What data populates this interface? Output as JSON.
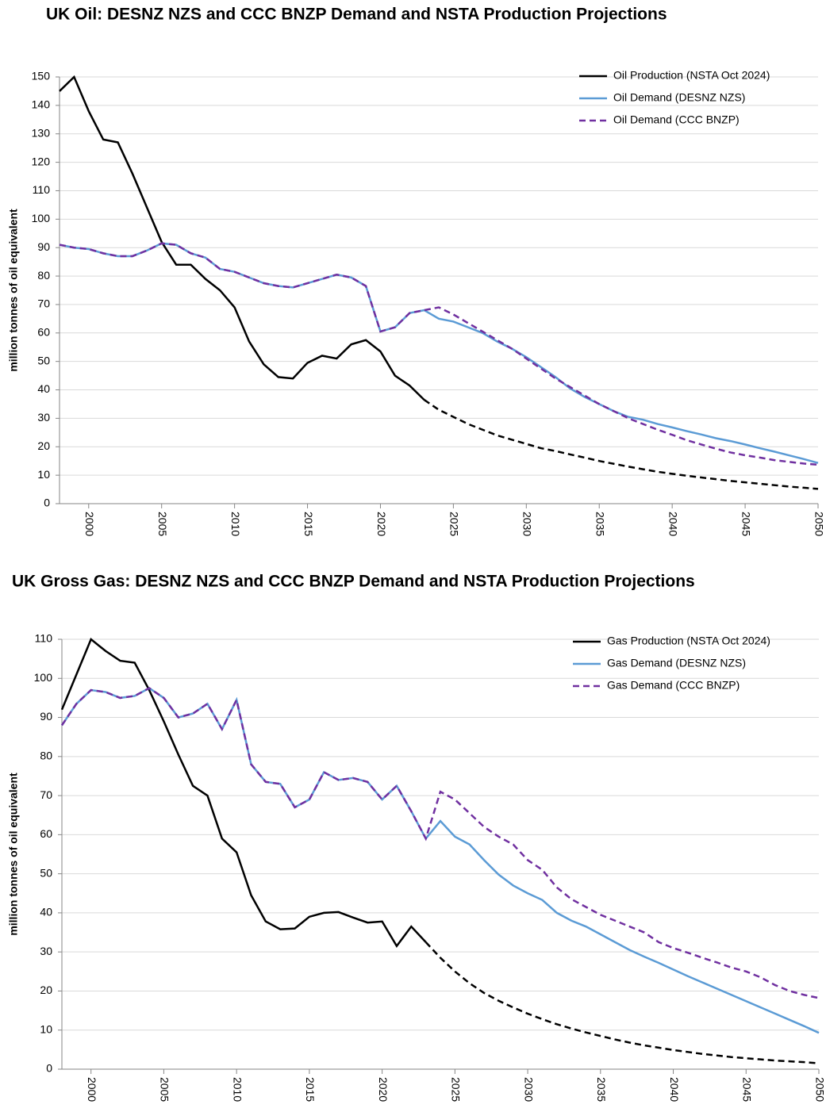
{
  "chart_data": [
    {
      "type": "line",
      "title": "UK Oil: DESNZ NZS and CCC BNZP Demand and NSTA Production Projections",
      "ylabel": "million tonnes of oil equivalent",
      "x": [
        1998,
        1999,
        2000,
        2001,
        2002,
        2003,
        2004,
        2005,
        2006,
        2007,
        2008,
        2009,
        2010,
        2011,
        2012,
        2013,
        2014,
        2015,
        2016,
        2017,
        2018,
        2019,
        2020,
        2021,
        2022,
        2023,
        2024,
        2025,
        2026,
        2027,
        2028,
        2029,
        2030,
        2031,
        2032,
        2033,
        2034,
        2035,
        2036,
        2037,
        2038,
        2039,
        2040,
        2041,
        2042,
        2043,
        2044,
        2045,
        2046,
        2047,
        2048,
        2049,
        2050
      ],
      "xlim": [
        1998,
        2050
      ],
      "xticks": [
        2000,
        2005,
        2010,
        2015,
        2020,
        2025,
        2030,
        2035,
        2040,
        2045,
        2050
      ],
      "ylim": [
        0,
        150
      ],
      "yticks": [
        0,
        10,
        20,
        30,
        40,
        50,
        60,
        70,
        80,
        90,
        100,
        110,
        120,
        130,
        140,
        150
      ],
      "grid": true,
      "legend": "upper right",
      "series": [
        {
          "name": "Oil Production (NSTA Oct 2024)",
          "color": "#000000",
          "projection_from": 2023,
          "values": [
            145,
            150,
            138,
            128,
            127,
            116,
            104,
            92,
            84,
            84,
            79,
            75,
            69,
            57,
            49,
            44.5,
            44,
            49.5,
            52,
            51,
            56,
            57.5,
            53.5,
            45,
            41.5,
            36.5,
            33,
            30.5,
            28,
            26,
            24,
            22.5,
            21,
            19.5,
            18.5,
            17.3,
            16.2,
            15,
            14,
            13,
            12.1,
            11.2,
            10.5,
            9.8,
            9.2,
            8.6,
            8,
            7.5,
            7,
            6.5,
            6,
            5.6,
            5.2
          ]
        },
        {
          "name": "Oil Demand (DESNZ NZS)",
          "color": "#5b9bd5",
          "values": [
            91,
            90,
            89.5,
            88,
            87,
            87,
            89,
            91.5,
            91,
            88,
            86.5,
            82.5,
            81.5,
            79.5,
            77.5,
            76.5,
            76,
            77.5,
            79,
            80.5,
            79.5,
            76.5,
            60.5,
            62,
            67,
            68,
            65,
            64,
            62,
            60,
            57,
            54.5,
            51.5,
            48,
            44.5,
            40.5,
            37.5,
            35,
            32.5,
            30.5,
            29.5,
            28,
            26.8,
            25.5,
            24.3,
            23,
            22,
            20.8,
            19.5,
            18.3,
            17,
            15.7,
            14.3
          ]
        },
        {
          "name": "Oil Demand (CCC BNZP)",
          "color": "#7030a0",
          "dashed": true,
          "values": [
            91,
            90,
            89.5,
            88,
            87,
            87,
            89,
            91.5,
            91,
            88,
            86.5,
            82.5,
            81.5,
            79.5,
            77.5,
            76.5,
            76,
            77.5,
            79,
            80.5,
            79.5,
            76.5,
            60.5,
            62,
            67,
            68,
            69,
            66.5,
            63.5,
            60.5,
            57.5,
            54.5,
            51,
            47.5,
            44,
            41,
            38,
            35,
            32.5,
            30,
            28,
            26,
            24.2,
            22.3,
            20.8,
            19.3,
            18,
            17,
            16.2,
            15.3,
            14.7,
            14.1,
            13.7
          ]
        }
      ]
    },
    {
      "type": "line",
      "title": "UK Gross Gas: DESNZ NZS and CCC BNZP Demand and NSTA Production Projections",
      "ylabel": "million tonnes of oil equivalent",
      "x": [
        1998,
        1999,
        2000,
        2001,
        2002,
        2003,
        2004,
        2005,
        2006,
        2007,
        2008,
        2009,
        2010,
        2011,
        2012,
        2013,
        2014,
        2015,
        2016,
        2017,
        2018,
        2019,
        2020,
        2021,
        2022,
        2023,
        2024,
        2025,
        2026,
        2027,
        2028,
        2029,
        2030,
        2031,
        2032,
        2033,
        2034,
        2035,
        2036,
        2037,
        2038,
        2039,
        2040,
        2041,
        2042,
        2043,
        2044,
        2045,
        2046,
        2047,
        2048,
        2049,
        2050
      ],
      "xlim": [
        1998,
        2050
      ],
      "xticks": [
        2000,
        2005,
        2010,
        2015,
        2020,
        2025,
        2030,
        2035,
        2040,
        2045,
        2050
      ],
      "ylim": [
        0,
        110
      ],
      "yticks": [
        0,
        10,
        20,
        30,
        40,
        50,
        60,
        70,
        80,
        90,
        100,
        110
      ],
      "grid": true,
      "legend": "upper right",
      "series": [
        {
          "name": "Gas Production (NSTA Oct 2024)",
          "color": "#000000",
          "projection_from": 2023,
          "values": [
            92,
            101,
            110,
            107,
            104.5,
            104,
            97,
            89,
            80.5,
            72.5,
            70,
            59,
            55.5,
            44.5,
            37.8,
            35.8,
            36,
            39,
            40,
            40.2,
            38.8,
            37.5,
            37.8,
            31.5,
            36.5,
            32.5,
            28.5,
            25,
            22,
            19.5,
            17.5,
            15.8,
            14.2,
            12.8,
            11.5,
            10.4,
            9.4,
            8.5,
            7.6,
            6.8,
            6.1,
            5.5,
            4.9,
            4.4,
            3.9,
            3.5,
            3.1,
            2.8,
            2.5,
            2.2,
            2,
            1.8,
            1.5
          ]
        },
        {
          "name": "Gas Demand (DESNZ NZS)",
          "color": "#5b9bd5",
          "values": [
            88,
            93.5,
            97,
            96.5,
            95,
            95.5,
            97.5,
            95,
            90,
            91,
            93.5,
            87,
            94.5,
            78,
            73.5,
            73,
            67,
            69,
            76,
            74,
            74.5,
            73.5,
            69,
            72.5,
            66,
            59,
            63.5,
            59.5,
            57.5,
            53.5,
            49.8,
            47,
            45,
            43.3,
            40,
            38,
            36.5,
            34.5,
            32.5,
            30.5,
            28.8,
            27.2,
            25.5,
            23.8,
            22.2,
            20.6,
            19,
            17.4,
            15.8,
            14.2,
            12.6,
            11,
            9.3
          ]
        },
        {
          "name": "Gas Demand (CCC BNZP)",
          "color": "#7030a0",
          "dashed": true,
          "values": [
            88,
            93.5,
            97,
            96.5,
            95,
            95.5,
            97.5,
            95,
            90,
            91,
            93.5,
            87,
            94.5,
            78,
            73.5,
            73,
            67,
            69,
            76,
            74,
            74.5,
            73.5,
            69,
            72.5,
            66,
            59,
            71,
            69,
            65.5,
            62,
            59.5,
            57.5,
            53.5,
            51,
            46.5,
            43.5,
            41.5,
            39.5,
            38,
            36.5,
            35,
            32.5,
            31,
            29.8,
            28.5,
            27.3,
            26,
            25,
            23.5,
            21.5,
            20,
            19,
            18.2
          ]
        }
      ]
    }
  ]
}
